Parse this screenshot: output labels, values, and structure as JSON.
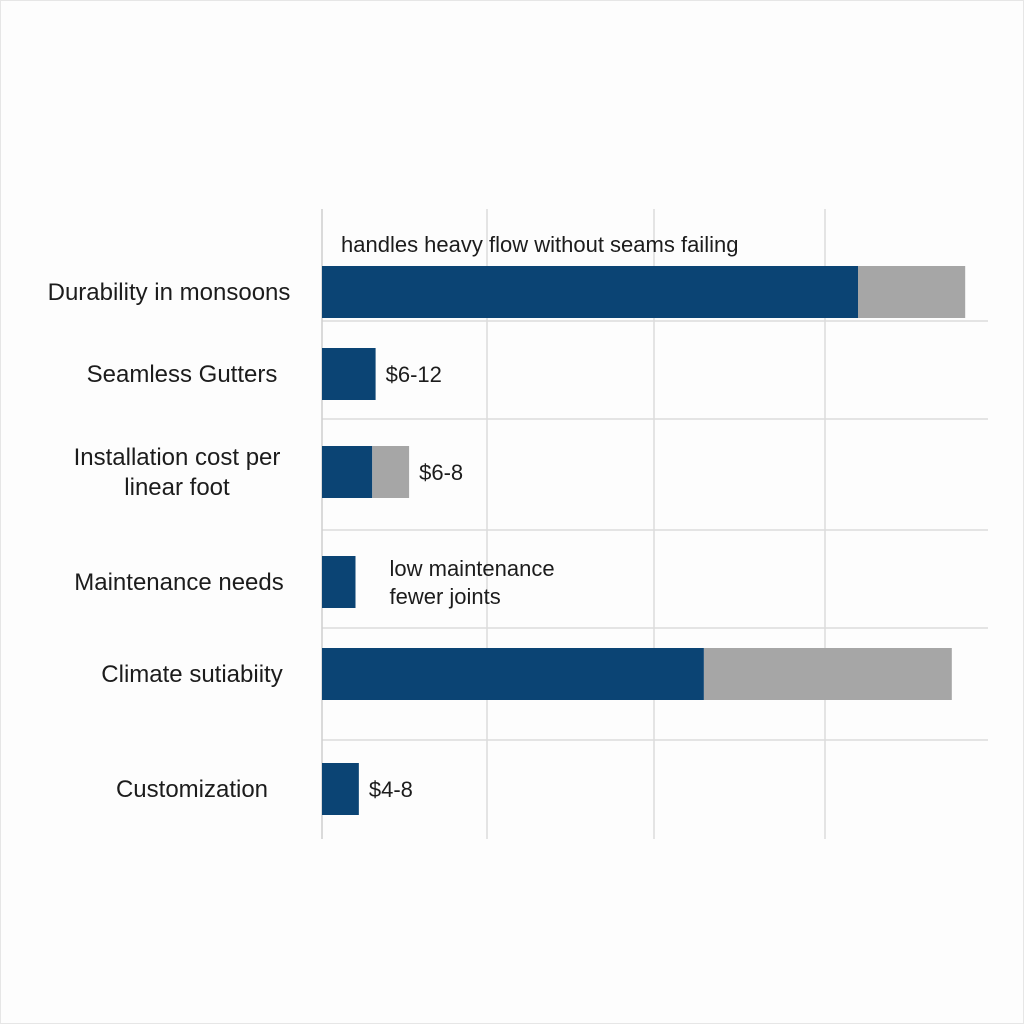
{
  "chart_data": {
    "type": "bar",
    "orientation": "horizontal",
    "stacked": true,
    "categories": [
      [
        "Durability in monsoons"
      ],
      [
        "Seamless Gutters"
      ],
      [
        "Installation cost per",
        "linear foot"
      ],
      [
        "Maintenance needs"
      ],
      [
        "Climate sutiabiity"
      ],
      [
        "Customization"
      ]
    ],
    "series": [
      {
        "values": [
          80,
          8,
          7.5,
          5,
          57,
          5.5
        ],
        "color": "#0b4474"
      },
      {
        "values": [
          16,
          0,
          5.5,
          0,
          37,
          0
        ],
        "color": "#a6a6a6"
      }
    ],
    "annotations": [
      {
        "category_index": 0,
        "position": "above",
        "lines": [
          "handles heavy flow without seams failing"
        ]
      },
      {
        "category_index": 1,
        "position": "right",
        "lines": [
          "$6-12"
        ]
      },
      {
        "category_index": 2,
        "position": "right",
        "lines": [
          "$6-8"
        ]
      },
      {
        "category_index": 3,
        "position": "right",
        "lines": [
          "low maintenance",
          "fewer joints"
        ]
      },
      {
        "category_index": 5,
        "position": "right",
        "lines": [
          "$4-8"
        ]
      }
    ],
    "xlim": [
      0,
      100
    ],
    "grid": true,
    "title": "",
    "xlabel": "",
    "ylabel": ""
  }
}
